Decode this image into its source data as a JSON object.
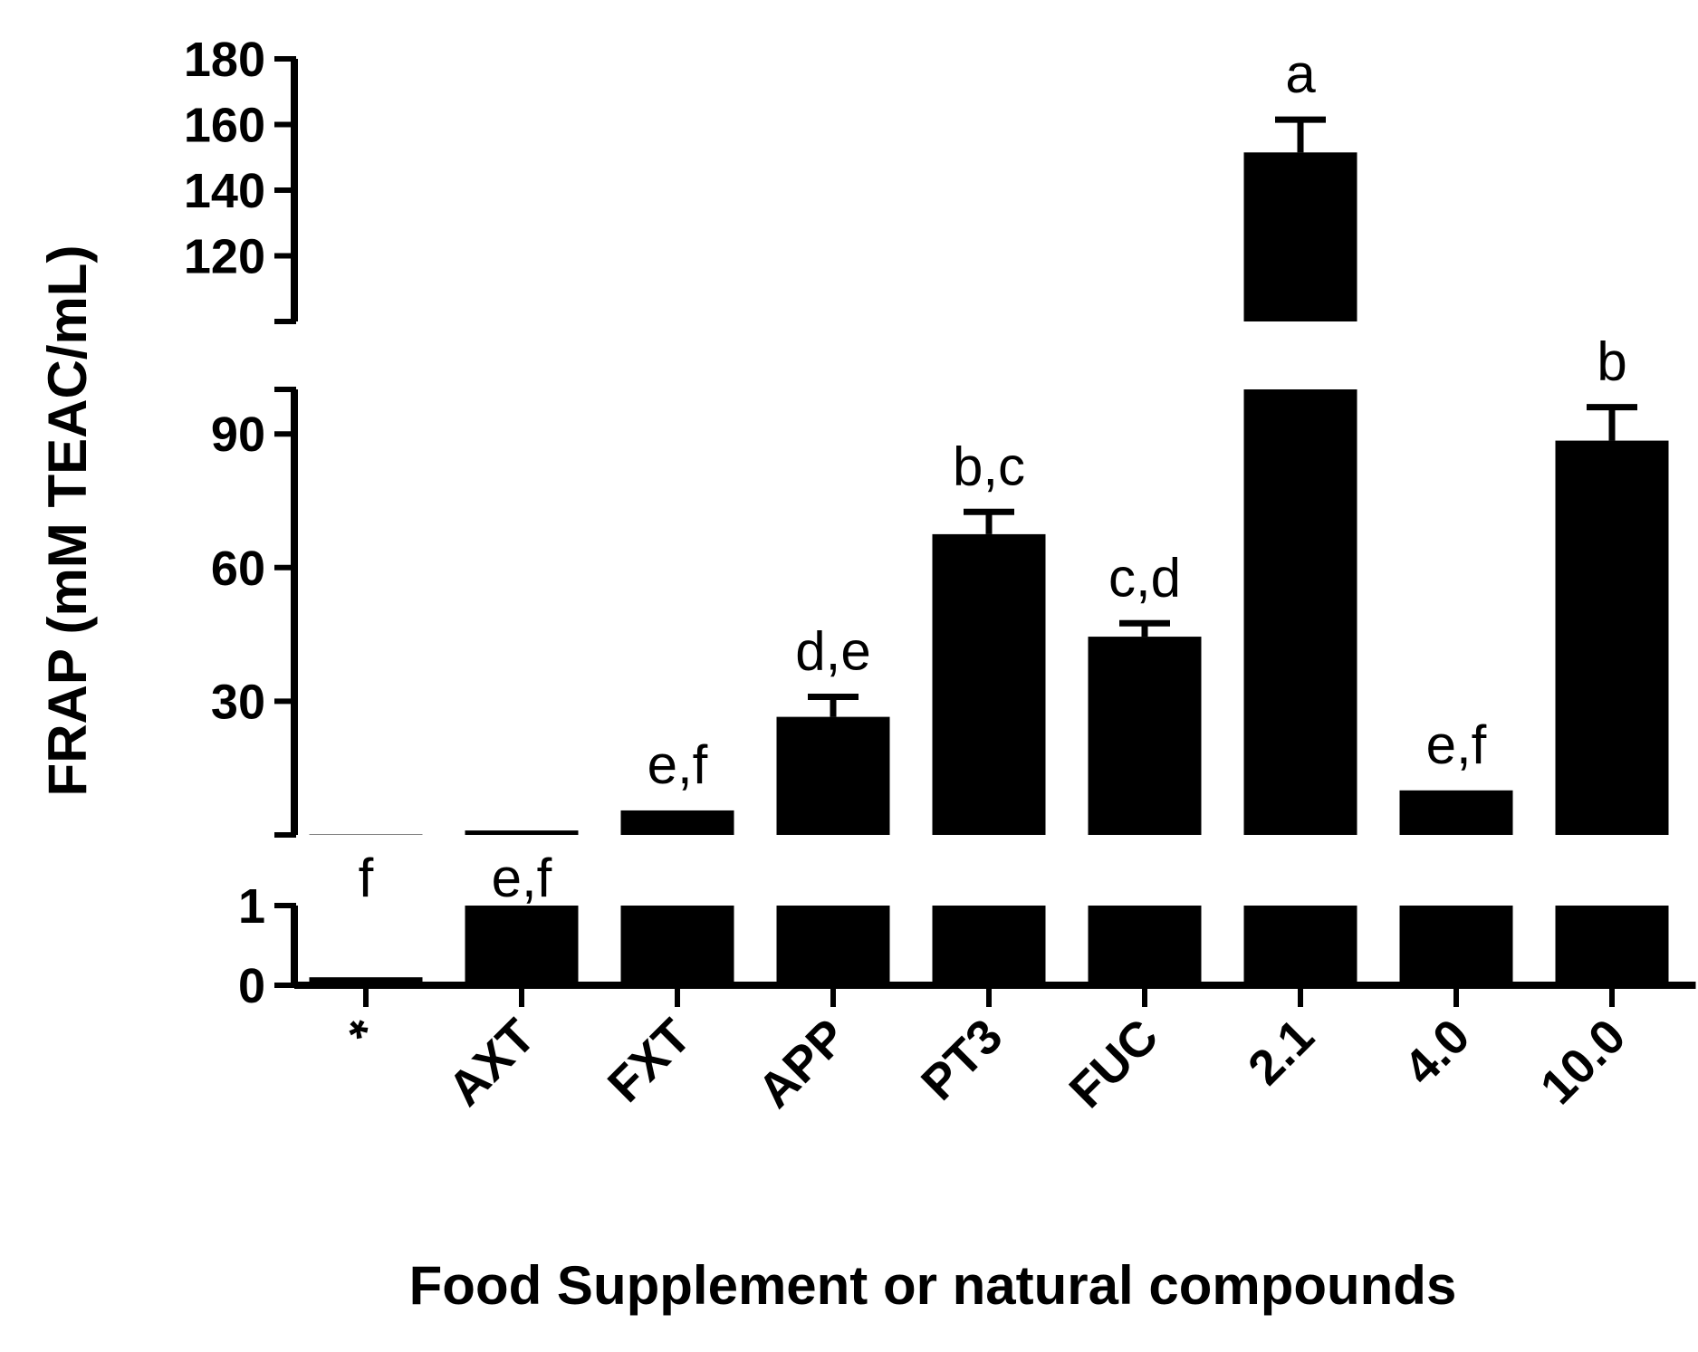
{
  "chart_data": {
    "type": "bar",
    "xlabel": "Food Supplement or natural compounds",
    "ylabel": "FRAP (mM TEAC/mL)",
    "categories": [
      "*",
      "AXT",
      "FXT",
      "APP",
      "PT3",
      "FUC",
      "2.1",
      "4.0",
      "10.0"
    ],
    "values": [
      0.1,
      1.0,
      5.5,
      26.5,
      67.5,
      44.5,
      151.5,
      10,
      88.5
    ],
    "errors": [
      0,
      0,
      0,
      4.5,
      5,
      3,
      10,
      0,
      7.5
    ],
    "significance": [
      "f",
      "e,f",
      "e,f",
      "d,e",
      "b,c",
      "c,d",
      "a",
      "e,f",
      "b"
    ],
    "broken_axis": [
      {
        "range": [
          0,
          1
        ],
        "ticks": [
          0,
          1
        ]
      },
      {
        "range": [
          0,
          100
        ],
        "ticks": [
          30,
          60,
          90
        ]
      },
      {
        "range": [
          100,
          180
        ],
        "ticks": [
          120,
          140,
          160,
          180
        ]
      }
    ],
    "colors": {
      "bar": "#000000",
      "axis": "#000000"
    },
    "grid": false
  }
}
